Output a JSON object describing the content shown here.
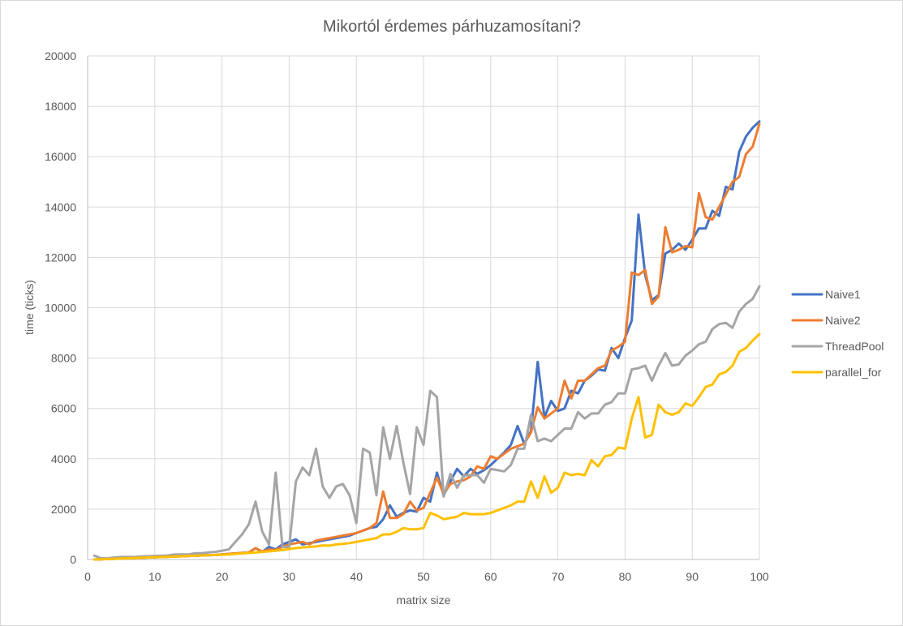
{
  "chart_data": {
    "type": "line",
    "title": "Mikortól érdemes párhuzamosítani?",
    "xlabel": "matrix size",
    "ylabel": "time (ticks)",
    "xlim": [
      0,
      100
    ],
    "ylim": [
      0,
      20000
    ],
    "xticks": [
      0,
      10,
      20,
      30,
      40,
      50,
      60,
      70,
      80,
      90,
      100
    ],
    "yticks": [
      0,
      2000,
      4000,
      6000,
      8000,
      10000,
      12000,
      14000,
      16000,
      18000,
      20000
    ],
    "grid": true,
    "legend_position": "right",
    "x": [
      1,
      2,
      3,
      4,
      5,
      6,
      7,
      8,
      9,
      10,
      11,
      12,
      13,
      14,
      15,
      16,
      17,
      18,
      19,
      20,
      21,
      22,
      23,
      24,
      25,
      26,
      27,
      28,
      29,
      30,
      31,
      32,
      33,
      34,
      35,
      36,
      37,
      38,
      39,
      40,
      41,
      42,
      43,
      44,
      45,
      46,
      47,
      48,
      49,
      50,
      51,
      52,
      53,
      54,
      55,
      56,
      57,
      58,
      59,
      60,
      61,
      62,
      63,
      64,
      65,
      66,
      67,
      68,
      69,
      70,
      71,
      72,
      73,
      74,
      75,
      76,
      77,
      78,
      79,
      80,
      81,
      82,
      83,
      84,
      85,
      86,
      87,
      88,
      89,
      90,
      91,
      92,
      93,
      94,
      95,
      96,
      97,
      98,
      99,
      100
    ],
    "series": [
      {
        "name": "Naive1",
        "color": "#4472c4",
        "values": [
          0,
          10,
          20,
          30,
          40,
          50,
          60,
          70,
          80,
          90,
          100,
          110,
          120,
          130,
          140,
          150,
          160,
          170,
          180,
          200,
          220,
          240,
          260,
          280,
          450,
          300,
          500,
          400,
          600,
          700,
          800,
          600,
          650,
          700,
          750,
          800,
          850,
          900,
          950,
          1050,
          1150,
          1250,
          1300,
          1600,
          2150,
          1700,
          1850,
          1950,
          1900,
          2450,
          2300,
          3450,
          2550,
          3100,
          3600,
          3300,
          3600,
          3400,
          3550,
          3750,
          4000,
          4250,
          4550,
          5300,
          4600,
          5100,
          7850,
          5650,
          6300,
          5900,
          6000,
          6700,
          6600,
          7100,
          7300,
          7550,
          7500,
          8400,
          8000,
          8800,
          9500,
          13700,
          11300,
          10300,
          10500,
          12150,
          12300,
          12550,
          12300,
          12700,
          13150,
          13150,
          13850,
          13650,
          14800,
          14700,
          16200,
          16800,
          17150,
          17400
        ]
      },
      {
        "name": "Naive2",
        "color": "#ed7d31",
        "values": [
          0,
          10,
          20,
          30,
          40,
          50,
          60,
          70,
          80,
          90,
          100,
          110,
          120,
          130,
          140,
          150,
          160,
          170,
          180,
          200,
          220,
          240,
          260,
          280,
          450,
          320,
          400,
          380,
          500,
          600,
          650,
          700,
          600,
          750,
          800,
          850,
          900,
          950,
          1000,
          1050,
          1150,
          1250,
          1450,
          2700,
          1650,
          1650,
          1800,
          2300,
          1950,
          2050,
          2650,
          3250,
          2600,
          3000,
          3100,
          3150,
          3300,
          3700,
          3600,
          4100,
          4000,
          4200,
          4400,
          4500,
          4600,
          5050,
          6050,
          5600,
          5800,
          6000,
          7100,
          6400,
          7100,
          7100,
          7350,
          7600,
          7700,
          8300,
          8450,
          8650,
          11400,
          11300,
          11500,
          10150,
          10450,
          13200,
          12200,
          12300,
          12450,
          12400,
          14550,
          13600,
          13500,
          14000,
          14500,
          15000,
          15200,
          16100,
          16400,
          17300
        ]
      },
      {
        "name": "ThreadPool",
        "color": "#a5a5a5",
        "values": [
          150,
          50,
          50,
          80,
          100,
          100,
          100,
          120,
          130,
          140,
          150,
          160,
          200,
          200,
          200,
          250,
          250,
          280,
          300,
          350,
          400,
          700,
          1000,
          1400,
          2300,
          1100,
          600,
          3450,
          500,
          500,
          3100,
          3650,
          3350,
          4400,
          2900,
          2450,
          2900,
          3000,
          2550,
          1450,
          4400,
          4250,
          2550,
          5250,
          4000,
          5300,
          3850,
          2600,
          5250,
          4550,
          6700,
          6450,
          2500,
          3400,
          2850,
          3350,
          3350,
          3350,
          3050,
          3600,
          3550,
          3500,
          3750,
          4400,
          4400,
          5750,
          4700,
          4800,
          4700,
          4950,
          5200,
          5200,
          5850,
          5600,
          5800,
          5800,
          6150,
          6250,
          6600,
          6600,
          7550,
          7600,
          7700,
          7100,
          7700,
          8200,
          7700,
          7750,
          8100,
          8300,
          8550,
          8650,
          9150,
          9350,
          9400,
          9200,
          9850,
          10150,
          10350,
          10850
        ]
      },
      {
        "name": "parallel_for",
        "color": "#ffc000",
        "values": [
          0,
          10,
          20,
          30,
          40,
          50,
          60,
          70,
          80,
          90,
          100,
          110,
          120,
          130,
          140,
          150,
          160,
          170,
          180,
          190,
          200,
          220,
          240,
          260,
          280,
          300,
          320,
          350,
          380,
          420,
          450,
          480,
          500,
          520,
          560,
          550,
          600,
          620,
          650,
          700,
          750,
          800,
          850,
          1000,
          1000,
          1100,
          1250,
          1200,
          1200,
          1250,
          1850,
          1750,
          1600,
          1650,
          1700,
          1850,
          1800,
          1800,
          1800,
          1850,
          1950,
          2050,
          2150,
          2300,
          2300,
          3100,
          2450,
          3300,
          2650,
          2850,
          3450,
          3350,
          3400,
          3350,
          3950,
          3700,
          4100,
          4150,
          4450,
          4400,
          5600,
          6450,
          4850,
          4950,
          6150,
          5850,
          5750,
          5850,
          6200,
          6100,
          6450,
          6850,
          6950,
          7350,
          7450,
          7700,
          8250,
          8400,
          8700,
          8950
        ]
      }
    ]
  }
}
